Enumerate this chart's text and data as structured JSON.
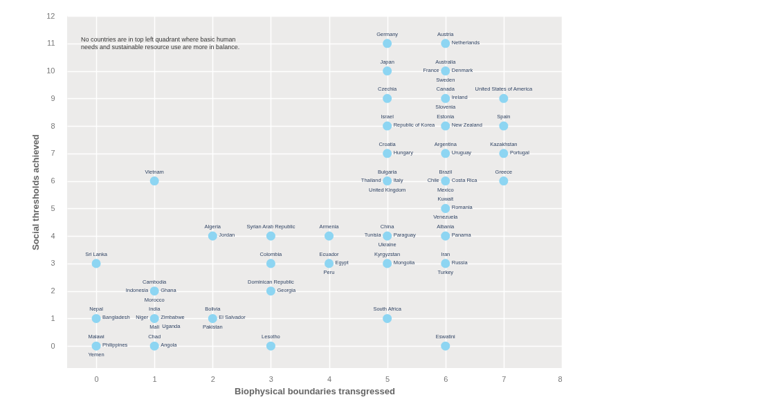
{
  "chart_data": {
    "type": "scatter",
    "xlabel": "Biophysical boundaries transgressed",
    "ylabel": "Social thresholds achieved",
    "x": [
      0,
      0,
      0,
      1,
      1,
      1,
      1,
      2,
      2,
      3,
      3,
      3,
      3,
      4,
      4,
      5,
      5,
      5,
      5,
      5,
      5,
      5,
      5,
      5,
      6,
      6,
      6,
      6,
      6,
      6,
      6,
      6,
      6,
      6,
      7,
      7,
      7,
      7
    ],
    "series": [
      {
        "color": "#8dd5f2",
        "values": [
          3,
          1,
          0,
          6,
          2,
          1,
          0,
          4,
          1,
          4,
          3,
          2,
          0,
          4,
          3,
          11,
          10,
          9,
          8,
          7,
          6,
          4,
          3,
          1,
          11,
          10,
          9,
          8,
          7,
          6,
          5,
          4,
          3,
          0,
          9,
          8,
          7,
          6
        ]
      }
    ],
    "xlim": [
      -0.5,
      8
    ],
    "xticks": [
      0,
      1,
      2,
      3,
      4,
      5,
      6,
      7,
      8
    ],
    "ylim": [
      -0.8,
      12
    ],
    "yticks": [
      0,
      1,
      2,
      3,
      4,
      5,
      6,
      7,
      8,
      9,
      10,
      11,
      12
    ],
    "grid": true,
    "marker": "circle",
    "annotations": [
      "No countries are in top left quadrant where basic human needs and sustainable resource use are more in balance.",
      {
        "text": "Sri Lanka",
        "x": 0,
        "y": 3
      },
      {
        "text": "Nepal",
        "x": 0,
        "y": 1
      },
      {
        "text": "Bangladesh",
        "x": 0,
        "y": 1
      },
      {
        "text": "Malawi",
        "x": 0,
        "y": 0
      },
      {
        "text": "Philippines",
        "x": 0,
        "y": 0
      },
      {
        "text": "Yemen",
        "x": 0,
        "y": 0
      },
      {
        "text": "Vietnam",
        "x": 1,
        "y": 6
      },
      {
        "text": "Cambodia",
        "x": 1,
        "y": 2
      },
      {
        "text": "Ghana",
        "x": 1,
        "y": 2
      },
      {
        "text": "Morocco",
        "x": 1,
        "y": 2
      },
      {
        "text": "Indonesia",
        "x": 1,
        "y": 2
      },
      {
        "text": "India",
        "x": 1,
        "y": 1
      },
      {
        "text": "Zimbabwe",
        "x": 1,
        "y": 1
      },
      {
        "text": "Mali",
        "x": 1,
        "y": 1
      },
      {
        "text": "Niger",
        "x": 1,
        "y": 1
      },
      {
        "text": "Uganda",
        "x": 1,
        "y": 1
      },
      {
        "text": "Chad",
        "x": 1,
        "y": 0
      },
      {
        "text": "Angola",
        "x": 1,
        "y": 0
      },
      {
        "text": "Algeria",
        "x": 2,
        "y": 4
      },
      {
        "text": "Jordan",
        "x": 2,
        "y": 4
      },
      {
        "text": "Bolivia",
        "x": 2,
        "y": 1
      },
      {
        "text": "El Salvador",
        "x": 2,
        "y": 1
      },
      {
        "text": "Pakistan",
        "x": 2,
        "y": 1
      },
      {
        "text": "Syrian Arab Republic",
        "x": 3,
        "y": 4
      },
      {
        "text": "Colombia",
        "x": 3,
        "y": 3
      },
      {
        "text": "Dominican Republic",
        "x": 3,
        "y": 2
      },
      {
        "text": "Georgia",
        "x": 3,
        "y": 2
      },
      {
        "text": "Lesotho",
        "x": 3,
        "y": 0
      },
      {
        "text": "Armenia",
        "x": 4,
        "y": 4
      },
      {
        "text": "Ecuador",
        "x": 4,
        "y": 3
      },
      {
        "text": "Egypt",
        "x": 4,
        "y": 3
      },
      {
        "text": "Peru",
        "x": 4,
        "y": 3
      },
      {
        "text": "Germany",
        "x": 5,
        "y": 11
      },
      {
        "text": "Japan",
        "x": 5,
        "y": 10
      },
      {
        "text": "Czechia",
        "x": 5,
        "y": 9
      },
      {
        "text": "Israel",
        "x": 5,
        "y": 8
      },
      {
        "text": "Republic of Korea",
        "x": 5,
        "y": 8
      },
      {
        "text": "Croatia",
        "x": 5,
        "y": 7
      },
      {
        "text": "Hungary",
        "x": 5,
        "y": 7
      },
      {
        "text": "Bulgaria",
        "x": 5,
        "y": 6
      },
      {
        "text": "Italy",
        "x": 5,
        "y": 6
      },
      {
        "text": "United Kingdom",
        "x": 5,
        "y": 6
      },
      {
        "text": "Thailand",
        "x": 5,
        "y": 6
      },
      {
        "text": "China",
        "x": 5,
        "y": 4
      },
      {
        "text": "Paraguay",
        "x": 5,
        "y": 4
      },
      {
        "text": "Ukraine",
        "x": 5,
        "y": 4
      },
      {
        "text": "Tunisia",
        "x": 5,
        "y": 4
      },
      {
        "text": "Kyrgyzstan",
        "x": 5,
        "y": 3
      },
      {
        "text": "Mongolia",
        "x": 5,
        "y": 3
      },
      {
        "text": "South Africa",
        "x": 5,
        "y": 1
      },
      {
        "text": "Austria",
        "x": 6,
        "y": 11
      },
      {
        "text": "Netherlands",
        "x": 6,
        "y": 11
      },
      {
        "text": "Australia",
        "x": 6,
        "y": 10
      },
      {
        "text": "Denmark",
        "x": 6,
        "y": 10
      },
      {
        "text": "Sweden",
        "x": 6,
        "y": 10
      },
      {
        "text": "France",
        "x": 6,
        "y": 10
      },
      {
        "text": "Canada",
        "x": 6,
        "y": 9
      },
      {
        "text": "Ireland",
        "x": 6,
        "y": 9
      },
      {
        "text": "Slovenia",
        "x": 6,
        "y": 9
      },
      {
        "text": "Estonia",
        "x": 6,
        "y": 8
      },
      {
        "text": "New Zealand",
        "x": 6,
        "y": 8
      },
      {
        "text": "Argentina",
        "x": 6,
        "y": 7
      },
      {
        "text": "Uruguay",
        "x": 6,
        "y": 7
      },
      {
        "text": "Brazil",
        "x": 6,
        "y": 6
      },
      {
        "text": "Costa Rica",
        "x": 6,
        "y": 6
      },
      {
        "text": "Mexico",
        "x": 6,
        "y": 6
      },
      {
        "text": "Chile",
        "x": 6,
        "y": 6
      },
      {
        "text": "Kuwait",
        "x": 6,
        "y": 5
      },
      {
        "text": "Romania",
        "x": 6,
        "y": 5
      },
      {
        "text": "Venezuela",
        "x": 6,
        "y": 5
      },
      {
        "text": "Albania",
        "x": 6,
        "y": 4
      },
      {
        "text": "Panama",
        "x": 6,
        "y": 4
      },
      {
        "text": "Iran",
        "x": 6,
        "y": 3
      },
      {
        "text": "Russia",
        "x": 6,
        "y": 3
      },
      {
        "text": "Turkey",
        "x": 6,
        "y": 3
      },
      {
        "text": "Eswatini",
        "x": 6,
        "y": 0
      },
      {
        "text": "United States of America",
        "x": 7,
        "y": 9
      },
      {
        "text": "Spain",
        "x": 7,
        "y": 8
      },
      {
        "text": "Kazakhstan",
        "x": 7,
        "y": 7
      },
      {
        "text": "Portugal",
        "x": 7,
        "y": 7
      },
      {
        "text": "Greece",
        "x": 7,
        "y": 6
      }
    ]
  }
}
